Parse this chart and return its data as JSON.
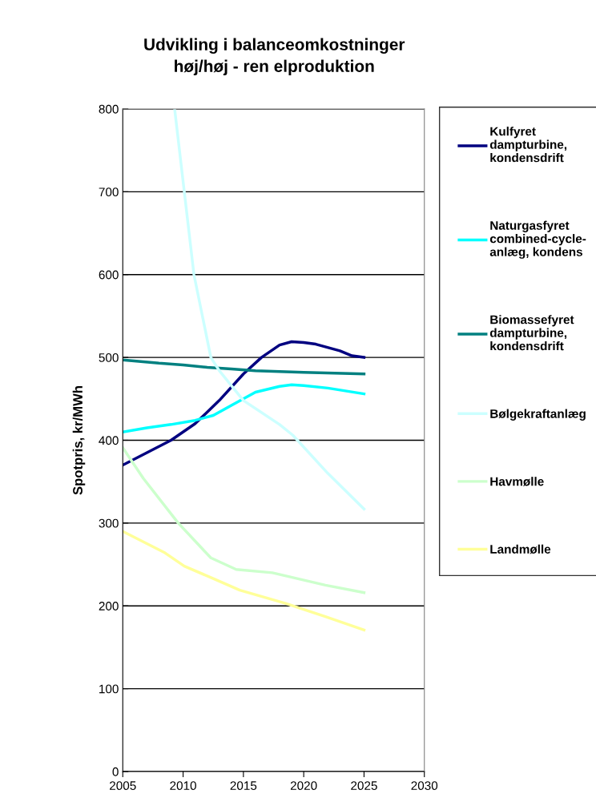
{
  "chart_data": {
    "type": "line",
    "title": "Udvikling i balanceomkostninger\nhøj/høj - ren elproduktion",
    "ylabel": "Spotpris, kr/MWh",
    "xlim": [
      2005,
      2030
    ],
    "xticks": [
      2005,
      2010,
      2015,
      2020,
      2025,
      2030
    ],
    "ylim": [
      0,
      800
    ],
    "yticks": [
      0,
      100,
      200,
      300,
      400,
      500,
      600,
      700,
      800
    ],
    "grid": "y",
    "legend": "right",
    "marker": "none",
    "line_style": "solid",
    "series": [
      {
        "name": "Kulfyret\ndampturbine,\nkondensdrift",
        "color": "#000080",
        "x": [
          2005,
          2007,
          2009,
          2011,
          2013,
          2015,
          2016.5,
          2018,
          2019,
          2020,
          2021,
          2023,
          2024,
          2025
        ],
        "values": [
          370,
          385,
          400,
          420,
          448,
          480,
          500,
          515,
          519,
          518,
          516,
          508,
          502,
          500
        ]
      },
      {
        "name": "Naturgasfyret\ncombined-cycle-\nanlæg, kondens",
        "color": "#00ffff",
        "x": [
          2005,
          2007,
          2009,
          2011,
          2012.5,
          2014,
          2016,
          2018,
          2019,
          2020,
          2022,
          2025
        ],
        "values": [
          410,
          415,
          419,
          424,
          430,
          442,
          458,
          465,
          467,
          466,
          463,
          456
        ]
      },
      {
        "name": "Biomassefyret\ndampturbine,\nkondensdrift",
        "color": "#008080",
        "x": [
          2005,
          2008,
          2010,
          2012,
          2014,
          2016,
          2020,
          2025
        ],
        "values": [
          497,
          493,
          491,
          488,
          486,
          484,
          482,
          480
        ]
      },
      {
        "name": "Bølgekraftanlæg",
        "color": "#ccffff",
        "x": [
          2009.3,
          2010.1,
          2010.9,
          2012.3,
          2013,
          2015,
          2018,
          2019.1,
          2022,
          2025
        ],
        "values": [
          800,
          700,
          600,
          500,
          484,
          448,
          419,
          406,
          360,
          317
        ]
      },
      {
        "name": "Havmølle",
        "color": "#ccffcc",
        "x": [
          2005,
          2006.7,
          2009.6,
          2012.3,
          2014.4,
          2017.4,
          2021.8,
          2025
        ],
        "values": [
          391,
          354,
          300,
          258,
          244,
          240,
          225,
          216
        ]
      },
      {
        "name": "Landmølle",
        "color": "#ffff99",
        "x": [
          2005,
          2008.5,
          2010.1,
          2012.5,
          2014.7,
          2018.5,
          2021.8,
          2025
        ],
        "values": [
          290,
          264,
          248,
          233,
          219,
          203,
          187,
          171
        ]
      }
    ]
  }
}
